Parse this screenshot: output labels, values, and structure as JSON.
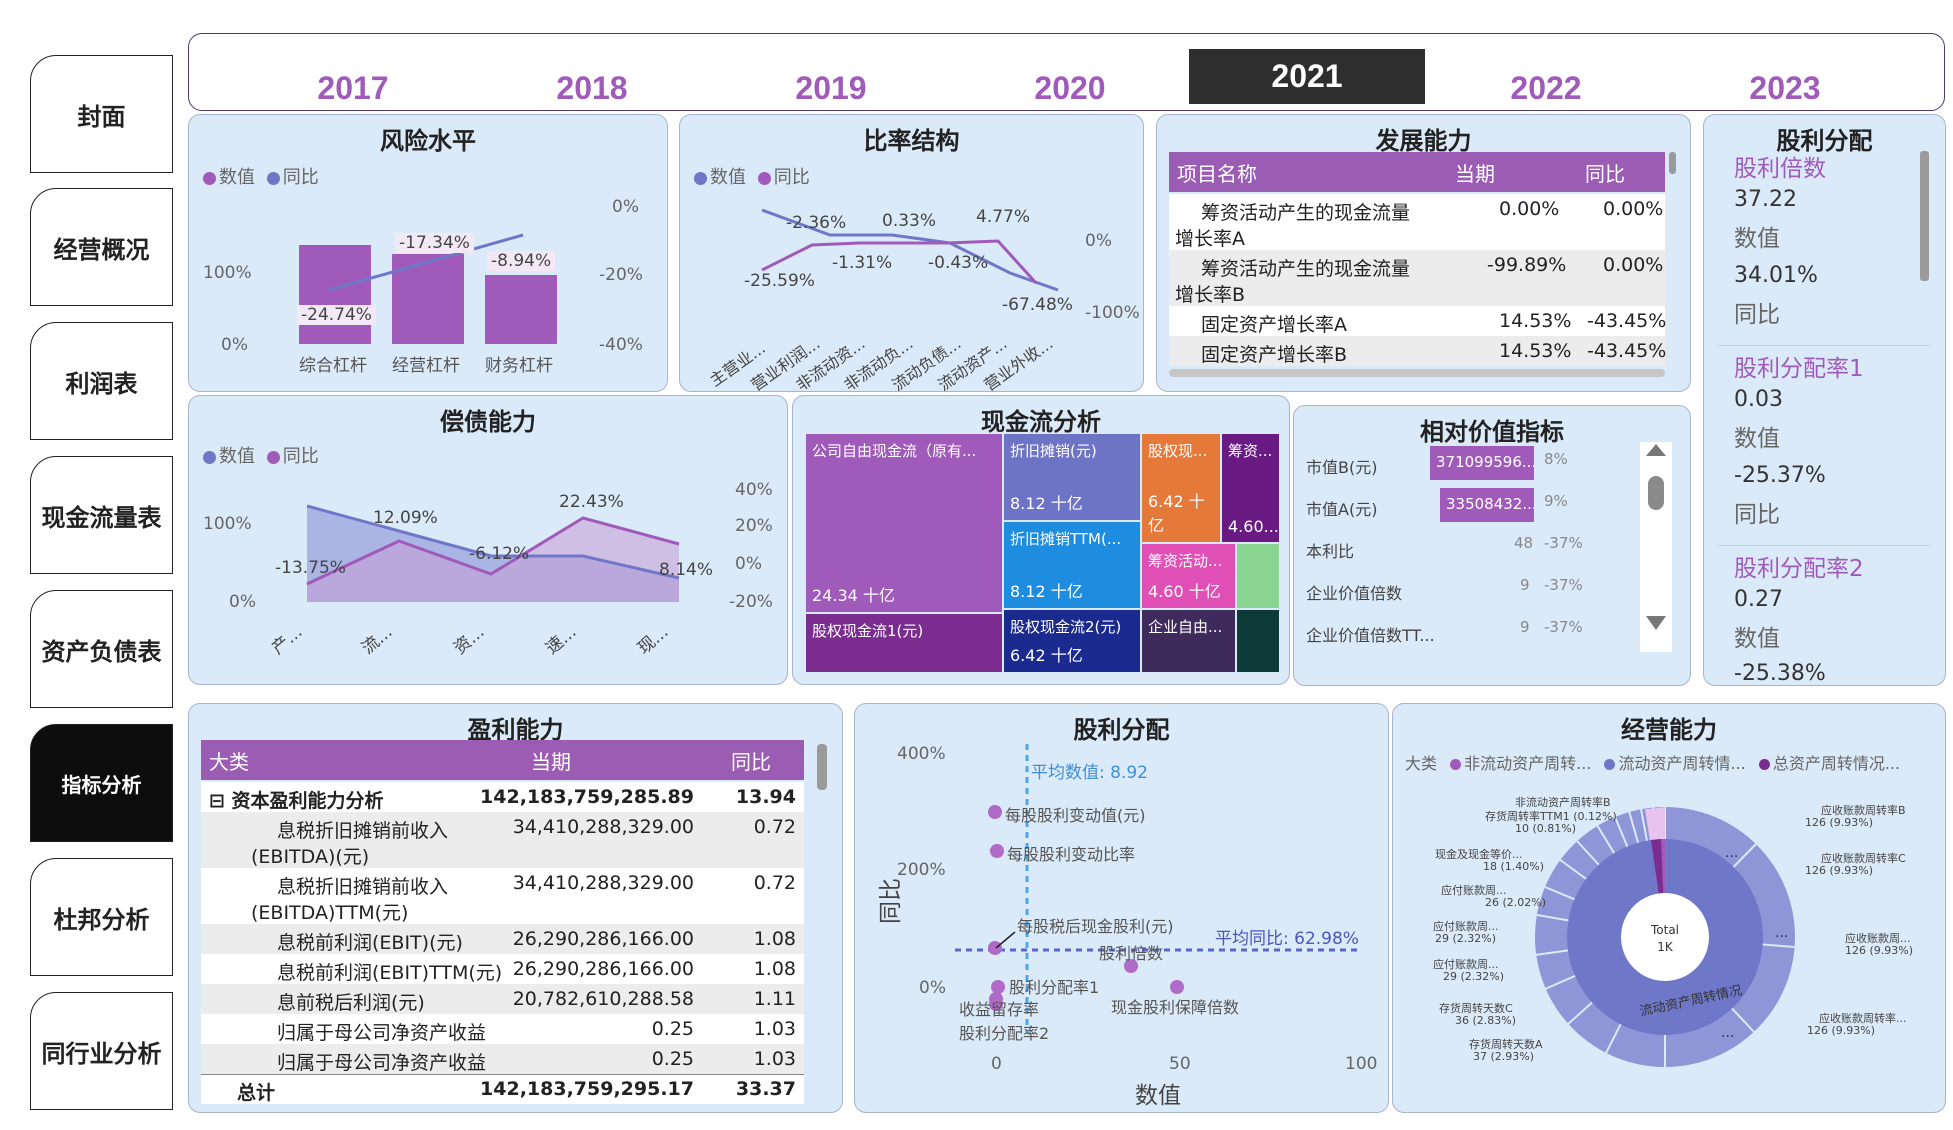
{
  "nav": [
    "封面",
    "经营概况",
    "利润表",
    "现金流量表",
    "资产负债表",
    "指标分析",
    "杜邦分析",
    "同行业分析"
  ],
  "nav_active": 5,
  "years": [
    "2017",
    "2018",
    "2019",
    "2020",
    "2021",
    "2022",
    "2023"
  ],
  "year_active": 4,
  "risk": {
    "title": "风险水平",
    "legend": [
      "数值",
      "同比"
    ],
    "y_left": [
      "100%",
      "0%"
    ],
    "y_right": [
      "0%",
      "-20%",
      "-40%"
    ],
    "categories": [
      "综合杠杆",
      "经营杠杆",
      "财务杠杆"
    ],
    "labels": [
      "-24.74%",
      "-17.34%",
      "-8.94%"
    ]
  },
  "ratio": {
    "title": "比率结构",
    "legend": [
      "数值",
      "同比"
    ],
    "y_right": [
      "0%",
      "-100%"
    ],
    "labels": [
      "-2.36%",
      "0.33%",
      "4.77%",
      "-25.59%",
      "-1.31%",
      "-0.43%",
      "-67.48%"
    ],
    "categories": [
      "主营业...",
      "营业利润...",
      "非流动资...",
      "非流动负...",
      "流动负债...",
      "流动资产...",
      "营业外收..."
    ]
  },
  "dev": {
    "title": "发展能力",
    "headers": [
      "项目名称",
      "当期",
      "同比"
    ],
    "rows": [
      [
        "筹资活动产生的现金流量",
        "增长率A",
        "0.00%",
        "0.00%"
      ],
      [
        "筹资活动产生的现金流量",
        "增长率B",
        "-99.89%",
        "0.00%"
      ],
      [
        "固定资产增长率A",
        "",
        "14.53%",
        "-43.45%"
      ],
      [
        "固定资产增长率B",
        "",
        "14.53%",
        "-43.45%"
      ]
    ]
  },
  "div_cards": {
    "title": "股利分配",
    "items": [
      {
        "name": "股利倍数",
        "v1": "37.22",
        "l1": "数值",
        "v2": "34.01%",
        "l2": "同比"
      },
      {
        "name": "股利分配率1",
        "v1": "0.03",
        "l1": "数值",
        "v2": "-25.37%",
        "l2": "同比"
      },
      {
        "name": "股利分配率2",
        "v1": "0.27",
        "l1": "数值",
        "v2": "-25.38%",
        "l2": ""
      }
    ]
  },
  "solv": {
    "title": "偿债能力",
    "legend": [
      "数值",
      "同比"
    ],
    "y_left": [
      "100%",
      "0%"
    ],
    "y_right": [
      "40%",
      "20%",
      "0%",
      "-20%"
    ],
    "labels": [
      "12.09%",
      "22.43%",
      "-13.75%",
      "-6.12%",
      "8.14%"
    ],
    "categories": [
      "产...",
      "流...",
      "资...",
      "速...",
      "现..."
    ]
  },
  "cash": {
    "title": "现金流分析",
    "cells": [
      {
        "name": "公司自由现金流（原有...",
        "val": "24.34 十亿"
      },
      {
        "name": "折旧摊销(元)",
        "val": "8.12 十亿"
      },
      {
        "name": "股权现...",
        "val": "6.42 十亿"
      },
      {
        "name": "筹资...",
        "val": "4.60..."
      },
      {
        "name": "折旧摊销TTM(...",
        "val": "8.12 十亿"
      },
      {
        "name": "筹资活动...",
        "val": "4.60 十亿"
      },
      {
        "name": "股权现金流1(元)",
        "val": ""
      },
      {
        "name": "股权现金流2(元)",
        "val": "6.42 十亿"
      },
      {
        "name": "企业自由...",
        "val": ""
      }
    ]
  },
  "rel": {
    "title": "相对价值指标",
    "rows": [
      {
        "name": "市值B(元)",
        "bar": "371099596...",
        "v": "",
        "pct": "8%"
      },
      {
        "name": "市值A(元)",
        "bar": "33508432...",
        "v": "",
        "pct": "9%"
      },
      {
        "name": "本利比",
        "bar": "",
        "v": "48",
        "pct": "-37%"
      },
      {
        "name": "企业价值倍数",
        "bar": "",
        "v": "9",
        "pct": "-37%"
      },
      {
        "name": "企业价值倍数TT...",
        "bar": "",
        "v": "9",
        "pct": "-37%"
      }
    ]
  },
  "profit": {
    "title": "盈利能力",
    "headers": [
      "大类",
      "当期",
      "同比"
    ],
    "rows": [
      {
        "a": "⊟  资本盈利能力分析",
        "b": "",
        "c": "142,183,759,285.89",
        "d": "13.94",
        "bold": true
      },
      {
        "a": "息税折旧摊销前收入",
        "b": "(EBITDA)(元)",
        "c": "34,410,288,329.00",
        "d": "0.72"
      },
      {
        "a": "息税折旧摊销前收入",
        "b": "(EBITDA)TTM(元)",
        "c": "34,410,288,329.00",
        "d": "0.72"
      },
      {
        "a": "息税前利润(EBIT)(元)",
        "b": "",
        "c": "26,290,286,166.00",
        "d": "1.08"
      },
      {
        "a": "息税前利润(EBIT)TTM(元)",
        "b": "",
        "c": "26,290,286,166.00",
        "d": "1.08"
      },
      {
        "a": "息前税后利润(元)",
        "b": "",
        "c": "20,782,610,288.58",
        "d": "1.11"
      },
      {
        "a": "归属于母公司净资产收益",
        "b": "",
        "c": "0.25",
        "d": "1.03"
      },
      {
        "a": "归属于母公司净资产收益",
        "b": "",
        "c": "0.25",
        "d": "1.03"
      }
    ],
    "total": {
      "a": "总计",
      "c": "142,183,759,295.17",
      "d": "33.37"
    }
  },
  "scatter": {
    "title": "股利分配",
    "y_ticks": [
      "400%",
      "200%",
      "0%"
    ],
    "x_ticks": [
      "0",
      "50",
      "100"
    ],
    "xlabel": "数值",
    "ylabel": "同比",
    "avg_x": "平均数值: 8.92",
    "avg_y": "平均同比: 62.98%",
    "points": [
      "每股股利变动值(元)",
      "每股股利变动比率",
      "每股税后现金股利(元)",
      "股利倍数",
      "股利分配率1",
      "现金股利保障倍数",
      "收益留存率",
      "股利分配率2"
    ]
  },
  "ops": {
    "title": "经营能力",
    "legend_title": "大类",
    "legend": [
      "非流动资产周转...",
      "流动资产周转情...",
      "总资产周转情况..."
    ],
    "center": [
      "Total",
      "1K"
    ],
    "left_labels": [
      [
        "非流动资产周转率B",
        ""
      ],
      [
        "存货周转率TTM1 (0.12%)",
        ""
      ],
      [
        "10 (0.81%)",
        ""
      ],
      [
        "现金及现金等价...",
        "18 (1.40%)"
      ],
      [
        "应付账款周...",
        "26 (2.02%)"
      ],
      [
        "应付账款周...",
        "29 (2.32%)"
      ],
      [
        "应付账款周...",
        "29 (2.32%)"
      ],
      [
        "存货周转天数C",
        "36 (2.83%)"
      ],
      [
        "存货周转天数A",
        "37 (2.93%)"
      ]
    ],
    "right_labels": [
      [
        "应收账款周转率B",
        "126 (9.93%)"
      ],
      [
        "应收账款周转率C",
        "126 (9.93%)"
      ],
      [
        "应收账款周...",
        "126 (9.93%)"
      ],
      [
        "应收账款周转率...",
        "126 (9.93%)"
      ]
    ],
    "ring_text": "流动资产周转情况"
  }
}
